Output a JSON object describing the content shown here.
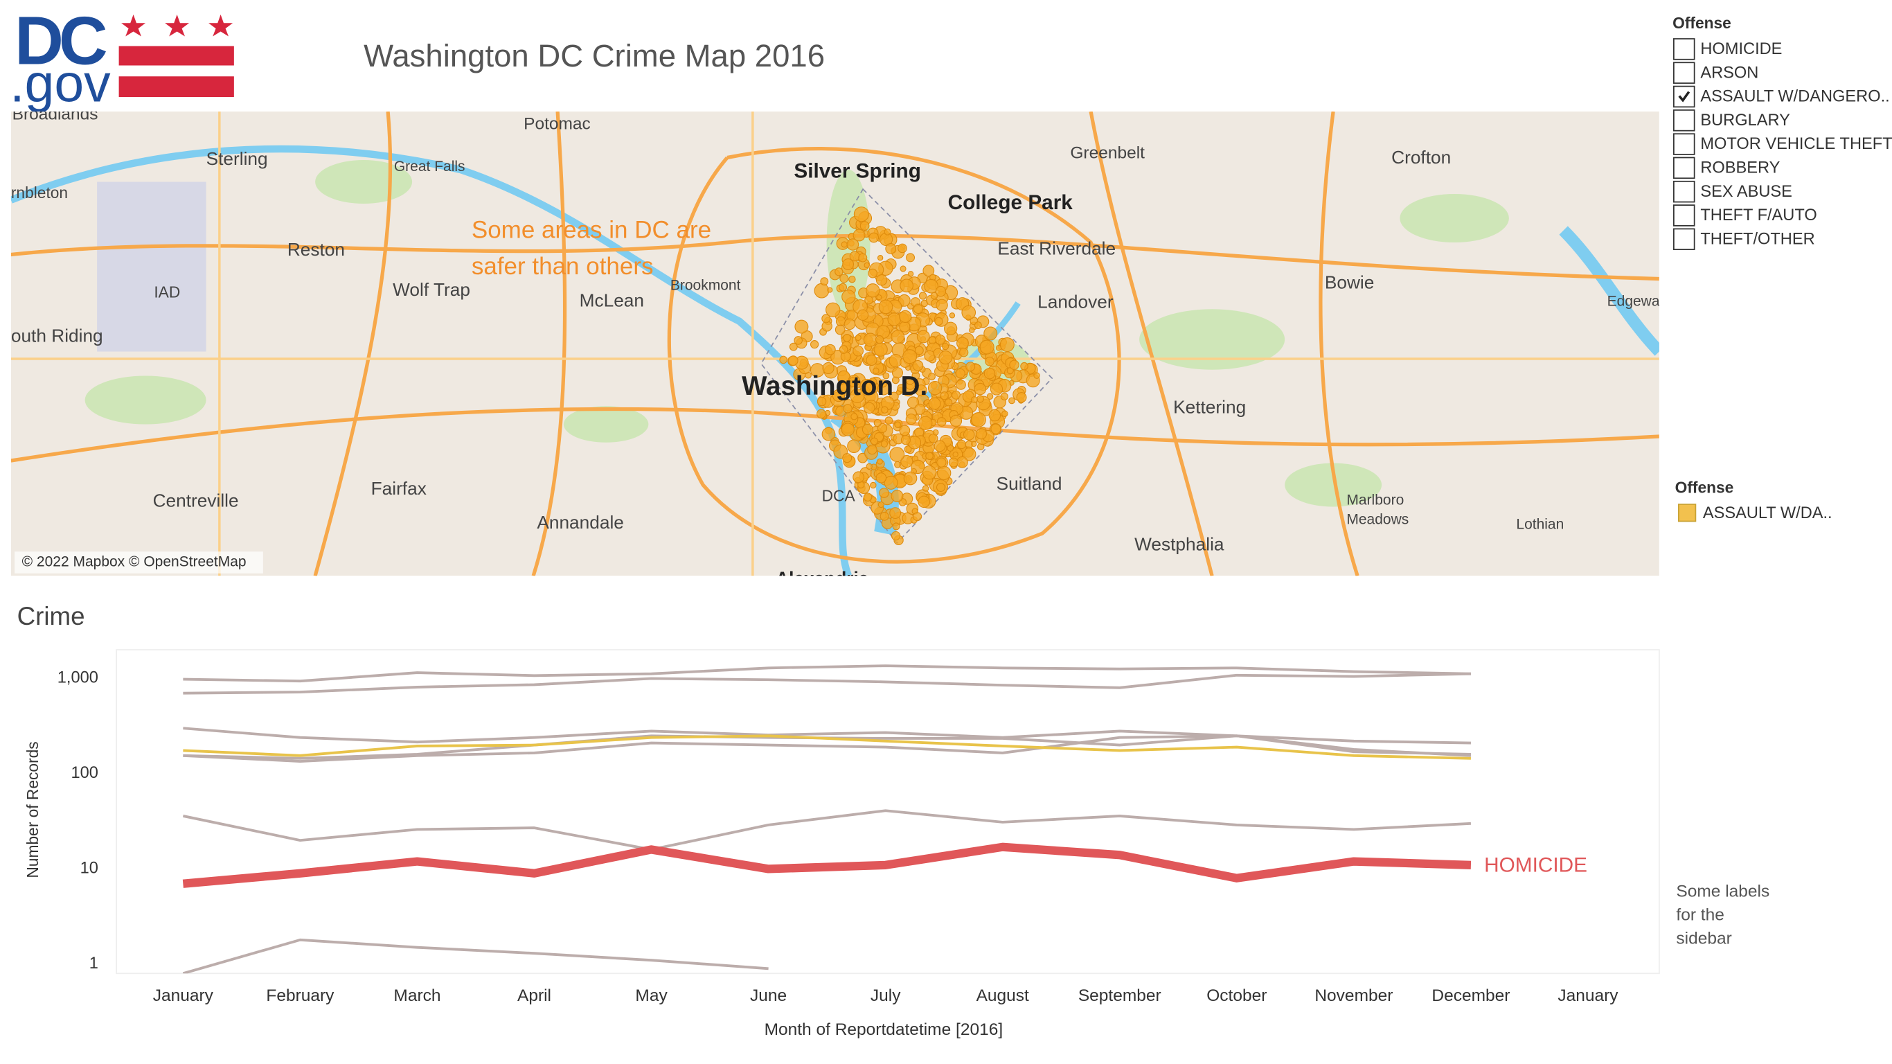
{
  "header": {
    "logo_top": "DC",
    "logo_bottom": ".gov",
    "title": "Washington DC Crime Map 2016"
  },
  "map": {
    "annotation": [
      "Some areas in DC are",
      "safer than others"
    ],
    "attribution": "© 2022 Mapbox © OpenStreetMap",
    "places": [
      "Broadlands",
      "Potomac",
      "Sterling",
      "Great Falls",
      "Silver Spring",
      "Greenbelt",
      "Crofton",
      "rnbleton",
      "College Park",
      "Reston",
      "East Riverdale",
      "Brookmont",
      "Wolf Trap",
      "McLean",
      "Landover",
      "Bowie",
      "IAD",
      "outh Riding",
      "Edgewa",
      "Washington D.",
      "Kettering",
      "Centreville",
      "Fairfax",
      "DCA",
      "Suitland",
      "Annandale",
      "Marlboro",
      "Meadows",
      "Lothian",
      "Westphalia",
      "Alexandria"
    ]
  },
  "filter": {
    "title": "Offense",
    "items": [
      {
        "label": "HOMICIDE",
        "checked": false
      },
      {
        "label": "ARSON",
        "checked": false
      },
      {
        "label": "ASSAULT W/DANGERO..",
        "checked": true
      },
      {
        "label": "BURGLARY",
        "checked": false
      },
      {
        "label": "MOTOR VEHICLE THEFT",
        "checked": false
      },
      {
        "label": "ROBBERY",
        "checked": false
      },
      {
        "label": "SEX ABUSE",
        "checked": false
      },
      {
        "label": "THEFT F/AUTO",
        "checked": false
      },
      {
        "label": "THEFT/OTHER",
        "checked": false
      }
    ]
  },
  "legend": {
    "title": "Offense",
    "items": [
      {
        "label": "ASSAULT W/DA..",
        "color": "#f2c14e"
      }
    ]
  },
  "sidebar": [
    "Some labels",
    "for the",
    "sidebar"
  ],
  "chart_data": {
    "type": "line",
    "title": "Crime",
    "x_label": "Month of Reportdatetime [2016]",
    "y_label": "Number of Records",
    "categories": [
      "January",
      "February",
      "March",
      "April",
      "May",
      "June",
      "July",
      "August",
      "September",
      "October",
      "November",
      "December",
      "January"
    ],
    "yscale": "log",
    "ylim": [
      0.8,
      2000
    ],
    "yticks": [
      {
        "value": 1000,
        "label": "1,000"
      },
      100,
      10,
      1
    ],
    "grid": false,
    "series": [
      {
        "color": "#bcadab",
        "values": [
          980,
          940,
          1150,
          1070,
          1120,
          1290,
          1360,
          1290,
          1260,
          1290,
          1180,
          1120,
          null
        ]
      },
      {
        "color": "#bcadab",
        "values": [
          700,
          720,
          810,
          860,
          1000,
          970,
          920,
          850,
          800,
          1080,
          1050,
          1120,
          null
        ]
      },
      {
        "color": "#bcadab",
        "values": [
          300,
          240,
          215,
          240,
          280,
          255,
          270,
          240,
          280,
          250,
          220,
          210,
          null
        ]
      },
      {
        "color": "#bcadab",
        "values": [
          155,
          135,
          155,
          165,
          210,
          200,
          190,
          165,
          240,
          250,
          180,
          155,
          null
        ]
      },
      {
        "color": "#bcadab",
        "values": [
          155,
          145,
          160,
          200,
          250,
          240,
          235,
          235,
          200,
          250,
          170,
          160,
          null
        ]
      },
      {
        "color": "#bcadab",
        "values": [
          36,
          20,
          26,
          27,
          16,
          29,
          41,
          31,
          36,
          29,
          26,
          30,
          null
        ]
      },
      {
        "color": "#bcadab",
        "values": [
          0.8,
          1.8,
          1.5,
          1.3,
          1.1,
          0.9,
          null,
          null,
          null,
          null,
          null,
          null,
          null
        ]
      },
      {
        "color": "#e8c34a",
        "values": [
          175,
          155,
          195,
          200,
          240,
          250,
          220,
          195,
          175,
          190,
          155,
          145,
          null
        ]
      },
      {
        "name": "HOMICIDE",
        "color": "#e05759",
        "values": [
          7,
          9,
          12,
          9,
          16,
          10,
          11,
          17,
          14,
          8,
          12,
          11,
          null
        ]
      }
    ]
  }
}
